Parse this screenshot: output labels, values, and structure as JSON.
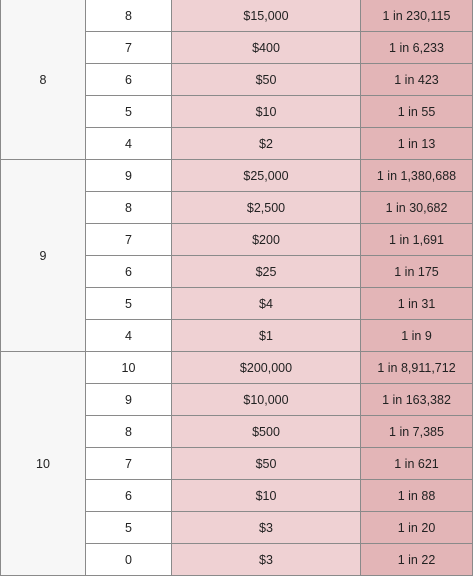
{
  "table": {
    "groups": [
      {
        "spots": "8",
        "rows": [
          {
            "match": "8",
            "prize": "$15,000",
            "odds": "1 in 230,115"
          },
          {
            "match": "7",
            "prize": "$400",
            "odds": "1 in 6,233"
          },
          {
            "match": "6",
            "prize": "$50",
            "odds": "1 in 423"
          },
          {
            "match": "5",
            "prize": "$10",
            "odds": "1 in 55"
          },
          {
            "match": "4",
            "prize": "$2",
            "odds": "1 in 13"
          }
        ]
      },
      {
        "spots": "9",
        "rows": [
          {
            "match": "9",
            "prize": "$25,000",
            "odds": "1 in 1,380,688"
          },
          {
            "match": "8",
            "prize": "$2,500",
            "odds": "1 in 30,682"
          },
          {
            "match": "7",
            "prize": "$200",
            "odds": "1 in 1,691"
          },
          {
            "match": "6",
            "prize": "$25",
            "odds": "1 in 175"
          },
          {
            "match": "5",
            "prize": "$4",
            "odds": "1 in 31"
          },
          {
            "match": "4",
            "prize": "$1",
            "odds": "1 in 9"
          }
        ]
      },
      {
        "spots": "10",
        "rows": [
          {
            "match": "10",
            "prize": "$200,000",
            "odds": "1 in 8,911,712"
          },
          {
            "match": "9",
            "prize": "$10,000",
            "odds": "1 in 163,382"
          },
          {
            "match": "8",
            "prize": "$500",
            "odds": "1 in 7,385"
          },
          {
            "match": "7",
            "prize": "$50",
            "odds": "1 in 621"
          },
          {
            "match": "6",
            "prize": "$10",
            "odds": "1 in 88"
          },
          {
            "match": "5",
            "prize": "$3",
            "odds": "1 in 20"
          },
          {
            "match": "0",
            "prize": "$3",
            "odds": "1 in 22"
          }
        ]
      }
    ],
    "colors": {
      "spots_bg": "#f7f7f7",
      "match_bg": "#ffffff",
      "prize_bg": "#efd1d3",
      "odds_bg": "#e3b5b7",
      "border": "#8a8a8a"
    }
  }
}
